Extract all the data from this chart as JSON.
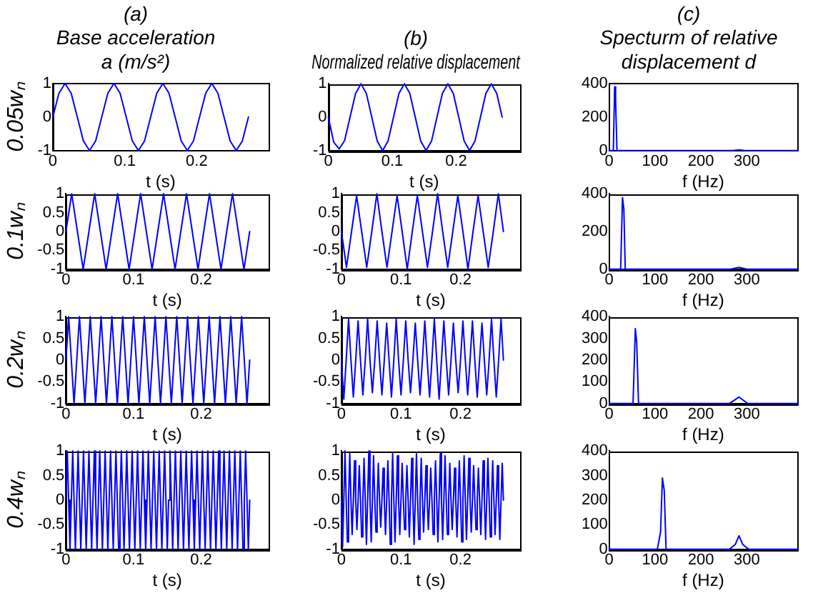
{
  "chart_data": [
    {
      "type": "line",
      "title": "(a)\nBase acceleration\na (m/s²)",
      "xlabel": "t (s)",
      "ylabel": "0.05wₙ",
      "xlim": [
        0,
        0.3
      ],
      "ylim": [
        -1,
        1
      ],
      "xticks": [
        0,
        0.1,
        0.2
      ],
      "yticks": [
        -1,
        0,
        1
      ],
      "x": [
        0,
        0.0085,
        0.017,
        0.0255,
        0.034,
        0.0425,
        0.051,
        0.0595,
        0.068,
        0.0765,
        0.085,
        0.0935,
        0.102,
        0.1105,
        0.119,
        0.1275,
        0.136,
        0.1445,
        0.153,
        0.1615,
        0.17,
        0.1785,
        0.187,
        0.1955,
        0.204,
        0.2125,
        0.221,
        0.2295,
        0.238,
        0.2465,
        0.255,
        0.2635,
        0.272
      ],
      "series": [
        {
          "color": "#0000ff",
          "values": [
            0,
            0.71,
            1,
            0.71,
            0,
            -0.71,
            -1,
            -0.71,
            0,
            0.71,
            1,
            0.71,
            0,
            -0.71,
            -1,
            -0.71,
            0,
            0.71,
            1,
            0.71,
            0,
            -0.71,
            -1,
            -0.71,
            0,
            0.71,
            1,
            0.71,
            0,
            -0.71,
            -1,
            -0.71,
            0
          ]
        }
      ]
    },
    {
      "type": "line",
      "title": "(b)\nNormalized relative displacement",
      "xlabel": "t (s)",
      "xlim": [
        0,
        0.3
      ],
      "ylim": [
        -1,
        1
      ],
      "xticks": [
        0,
        0.1,
        0.2
      ],
      "yticks": [
        -1,
        0,
        1
      ],
      "x": [
        0,
        0.0085,
        0.017,
        0.0255,
        0.034,
        0.0425,
        0.051,
        0.0595,
        0.068,
        0.0765,
        0.085,
        0.0935,
        0.102,
        0.1105,
        0.119,
        0.1275,
        0.136,
        0.1445,
        0.153,
        0.1615,
        0.17,
        0.1785,
        0.187,
        0.1955,
        0.204,
        0.2125,
        0.221,
        0.2295,
        0.238,
        0.2465,
        0.255,
        0.2635,
        0.272
      ],
      "series": [
        {
          "color": "#0000ff",
          "values": [
            0,
            -0.75,
            -0.95,
            -0.7,
            0,
            0.7,
            1,
            0.71,
            0,
            -0.71,
            -1,
            -0.71,
            0,
            0.71,
            1,
            0.71,
            0,
            -0.71,
            -1,
            -0.71,
            0,
            0.71,
            1,
            0.71,
            0,
            -0.71,
            -1,
            -0.71,
            0,
            0.71,
            1,
            0.71,
            0
          ]
        }
      ]
    },
    {
      "type": "line",
      "title": "(c)\nSpecturm of relative\ndisplacement d",
      "xlabel": "f (Hz)",
      "xlim": [
        0,
        410
      ],
      "ylim": [
        0,
        400
      ],
      "xticks": [
        0,
        100,
        200,
        300
      ],
      "yticks": [
        0,
        200,
        400
      ],
      "x": [
        0,
        9,
        12,
        14,
        17,
        270,
        283,
        296,
        410
      ],
      "series": [
        {
          "color": "#0000ff",
          "values": [
            0,
            0,
            380,
            300,
            0,
            0,
            5,
            0,
            0
          ]
        }
      ]
    },
    {
      "type": "line",
      "xlabel": "t (s)",
      "ylabel": "0.1wₙ",
      "xlim": [
        0,
        0.3
      ],
      "ylim": [
        -1,
        1
      ],
      "xticks": [
        0,
        0.1,
        0.2
      ],
      "yticks": [
        -1,
        -0.5,
        0,
        0.5,
        1
      ],
      "x": [
        0,
        0.0085,
        0.017,
        0.0255,
        0.034,
        0.0425,
        0.051,
        0.0595,
        0.068,
        0.0765,
        0.085,
        0.0935,
        0.102,
        0.1105,
        0.119,
        0.1275,
        0.136,
        0.1445,
        0.153,
        0.1615,
        0.17,
        0.1785,
        0.187,
        0.1955,
        0.204,
        0.2125,
        0.221,
        0.2295,
        0.238,
        0.2465,
        0.255,
        0.2635,
        0.272
      ],
      "series": [
        {
          "color": "#0000ff",
          "values": [
            0,
            1,
            0,
            -1,
            0,
            1,
            0,
            -1,
            0,
            1,
            0,
            -1,
            0,
            1,
            0,
            -1,
            0,
            1,
            0,
            -1,
            0,
            1,
            0,
            -1,
            0,
            1,
            0,
            -1,
            0,
            1,
            0,
            -1,
            0
          ]
        }
      ]
    },
    {
      "type": "line",
      "xlabel": "t (s)",
      "xlim": [
        0,
        0.3
      ],
      "ylim": [
        -1,
        1
      ],
      "xticks": [
        0,
        0.1,
        0.2
      ],
      "yticks": [
        -1,
        -0.5,
        0,
        0.5,
        1
      ],
      "x": [
        0,
        0.0085,
        0.017,
        0.0255,
        0.034,
        0.0425,
        0.051,
        0.0595,
        0.068,
        0.0765,
        0.085,
        0.0935,
        0.102,
        0.1105,
        0.119,
        0.1275,
        0.136,
        0.1445,
        0.153,
        0.1615,
        0.17,
        0.1785,
        0.187,
        0.1955,
        0.204,
        0.2125,
        0.221,
        0.2295,
        0.238,
        0.2465,
        0.255,
        0.2635,
        0.272
      ],
      "series": [
        {
          "color": "#0000ff",
          "values": [
            0,
            -0.95,
            0,
            0.95,
            0,
            -0.95,
            0,
            1,
            0,
            -0.95,
            0,
            0.95,
            0,
            -1,
            0,
            0.95,
            0,
            -0.95,
            0,
            1,
            0,
            -0.95,
            0,
            0.95,
            0,
            -1,
            0,
            0.95,
            0,
            -0.95,
            0,
            1,
            0
          ]
        }
      ]
    },
    {
      "type": "line",
      "xlabel": "f (Hz)",
      "xlim": [
        0,
        410
      ],
      "ylim": [
        0,
        400
      ],
      "xticks": [
        0,
        100,
        200,
        300
      ],
      "yticks": [
        0,
        200,
        400
      ],
      "x": [
        0,
        25,
        29,
        32,
        35,
        265,
        283,
        300,
        410
      ],
      "series": [
        {
          "color": "#0000ff",
          "values": [
            0,
            0,
            380,
            320,
            0,
            0,
            10,
            0,
            0
          ]
        }
      ]
    },
    {
      "type": "line",
      "xlabel": "t (s)",
      "ylabel": "0.2wₙ",
      "xlim": [
        0,
        0.3
      ],
      "ylim": [
        -1,
        1
      ],
      "xticks": [
        0,
        0.1,
        0.2
      ],
      "yticks": [
        -1,
        -0.5,
        0,
        0.5,
        1
      ],
      "x": [
        0,
        0.004,
        0.008,
        0.012,
        0.016,
        0.02,
        0.024,
        0.028,
        0.032,
        0.036,
        0.04,
        0.044,
        0.048,
        0.052,
        0.056,
        0.06,
        0.064,
        0.068,
        0.072,
        0.076,
        0.08,
        0.084,
        0.088,
        0.092,
        0.096,
        0.1,
        0.104,
        0.108,
        0.112,
        0.116,
        0.12,
        0.124,
        0.128,
        0.132,
        0.136,
        0.14,
        0.144,
        0.148,
        0.152,
        0.156,
        0.16,
        0.164,
        0.168,
        0.172,
        0.176,
        0.18,
        0.184,
        0.188,
        0.192,
        0.196,
        0.2,
        0.204,
        0.208,
        0.212,
        0.216,
        0.22,
        0.224,
        0.228,
        0.232,
        0.236,
        0.24,
        0.244,
        0.248,
        0.252,
        0.256,
        0.26,
        0.264,
        0.268,
        0.272
      ],
      "series": [
        {
          "color": "#0000ff",
          "values": [
            0,
            1,
            0,
            -1,
            0,
            1,
            0,
            -1,
            0,
            1,
            0,
            -1,
            0,
            1,
            0,
            -1,
            0,
            1,
            0,
            -1,
            0,
            1,
            0,
            -1,
            0,
            1,
            0,
            -1,
            0,
            1,
            0,
            -1,
            0,
            1,
            0,
            -1,
            0,
            1,
            0,
            -1,
            0,
            1,
            0,
            -1,
            0,
            1,
            0,
            -1,
            0,
            1,
            0,
            -1,
            0,
            1,
            0,
            -1,
            0,
            1,
            0,
            -1,
            0,
            1,
            0,
            -1,
            0,
            1,
            0,
            -1,
            0
          ]
        }
      ]
    },
    {
      "type": "line",
      "xlabel": "t (s)",
      "xlim": [
        0,
        0.3
      ],
      "ylim": [
        -1,
        1
      ],
      "xticks": [
        0,
        0.1,
        0.2
      ],
      "yticks": [
        -1,
        -0.5,
        0,
        0.5,
        1
      ],
      "x": [
        0,
        0.004,
        0.008,
        0.012,
        0.016,
        0.02,
        0.024,
        0.028,
        0.032,
        0.036,
        0.04,
        0.044,
        0.048,
        0.052,
        0.056,
        0.06,
        0.064,
        0.068,
        0.072,
        0.076,
        0.08,
        0.084,
        0.088,
        0.092,
        0.096,
        0.1,
        0.104,
        0.108,
        0.112,
        0.116,
        0.12,
        0.124,
        0.128,
        0.132,
        0.136,
        0.14,
        0.144,
        0.148,
        0.152,
        0.156,
        0.16,
        0.164,
        0.168,
        0.172,
        0.176,
        0.18,
        0.184,
        0.188,
        0.192,
        0.196,
        0.2,
        0.204,
        0.208,
        0.212,
        0.216,
        0.22,
        0.224,
        0.228,
        0.232,
        0.236,
        0.24,
        0.244,
        0.248,
        0.252,
        0.256,
        0.26,
        0.264,
        0.268,
        0.272
      ],
      "series": [
        {
          "color": "#0000ff",
          "values": [
            0,
            -0.9,
            0,
            0.95,
            0,
            -0.85,
            0,
            0.9,
            0,
            -0.8,
            0,
            0.95,
            0,
            -0.75,
            0,
            0.9,
            0,
            -0.8,
            0,
            0.85,
            0,
            -0.85,
            0,
            0.95,
            0,
            -0.8,
            0,
            0.9,
            0,
            -0.75,
            0,
            0.85,
            0,
            -0.8,
            0,
            0.9,
            0,
            -0.85,
            0,
            0.95,
            0,
            -0.9,
            0,
            0.9,
            0,
            -0.8,
            0,
            0.85,
            0,
            -0.75,
            0,
            0.9,
            0,
            -0.8,
            0,
            0.9,
            0,
            -0.85,
            0,
            0.85,
            0,
            -0.8,
            0,
            0.95,
            0,
            -0.85,
            0,
            0.95,
            0
          ]
        }
      ]
    },
    {
      "type": "line",
      "xlabel": "f (Hz)",
      "xlim": [
        0,
        410
      ],
      "ylim": [
        0,
        400
      ],
      "xticks": [
        0,
        100,
        200,
        300
      ],
      "yticks": [
        0,
        100,
        200,
        300,
        400
      ],
      "x": [
        0,
        52,
        57,
        60,
        64,
        262,
        283,
        302,
        410
      ],
      "series": [
        {
          "color": "#0000ff",
          "values": [
            0,
            0,
            345,
            280,
            0,
            0,
            30,
            0,
            0
          ]
        }
      ]
    },
    {
      "type": "line",
      "xlabel": "t (s)",
      "ylabel": "0.4wₙ",
      "xlim": [
        0,
        0.3
      ],
      "ylim": [
        -1,
        1
      ],
      "xticks": [
        0,
        0.1,
        0.2
      ],
      "yticks": [
        -1,
        -0.5,
        0,
        0.5,
        1
      ],
      "x": [
        0,
        0.002,
        0.004,
        0.006,
        0.008,
        0.01,
        0.012,
        0.014,
        0.016,
        0.018,
        0.02,
        0.022,
        0.024,
        0.026,
        0.028,
        0.03,
        0.032,
        0.034,
        0.036,
        0.038,
        0.04,
        0.042,
        0.044,
        0.046,
        0.048,
        0.05,
        0.052,
        0.054,
        0.056,
        0.058,
        0.06,
        0.062,
        0.064,
        0.066,
        0.068,
        0.07,
        0.072,
        0.074,
        0.076,
        0.078,
        0.08,
        0.082,
        0.084,
        0.086,
        0.088,
        0.09,
        0.092,
        0.094,
        0.096,
        0.098,
        0.1,
        0.102,
        0.104,
        0.106,
        0.108,
        0.11,
        0.112,
        0.114,
        0.116,
        0.118,
        0.12,
        0.122,
        0.124,
        0.126,
        0.128,
        0.13,
        0.132,
        0.134,
        0.136,
        0.138,
        0.14,
        0.142,
        0.144,
        0.146,
        0.148,
        0.15,
        0.152,
        0.154,
        0.156,
        0.158,
        0.16,
        0.162,
        0.164,
        0.166,
        0.168,
        0.17,
        0.172,
        0.174,
        0.176,
        0.178,
        0.18,
        0.182,
        0.184,
        0.186,
        0.188,
        0.19,
        0.192,
        0.194,
        0.196,
        0.198,
        0.2,
        0.202,
        0.204,
        0.206,
        0.208,
        0.21,
        0.212,
        0.214,
        0.216,
        0.218,
        0.22,
        0.222,
        0.224,
        0.226,
        0.228,
        0.23,
        0.232,
        0.234,
        0.236,
        0.238,
        0.24,
        0.242,
        0.244,
        0.246,
        0.248,
        0.25,
        0.252,
        0.254,
        0.256,
        0.258,
        0.26,
        0.262,
        0.264,
        0.266,
        0.268,
        0.27,
        0.272
      ],
      "series": [
        {
          "color": "#0000ff",
          "values": [
            0,
            1,
            0,
            -1,
            0,
            1,
            0,
            -1,
            0,
            1,
            0,
            -1,
            0,
            1,
            0,
            -1,
            0,
            1,
            0,
            -1,
            0,
            1,
            0,
            -1,
            0,
            1,
            0,
            -1,
            0,
            1,
            0,
            -1,
            0,
            1,
            0,
            -1,
            0,
            1,
            0,
            -1,
            0,
            1,
            0,
            -1,
            0,
            1,
            0,
            -1,
            0,
            1,
            0,
            -1,
            0,
            1,
            0,
            -1,
            0,
            1,
            0,
            -1,
            0,
            1,
            0,
            -1,
            0,
            1,
            0,
            -1,
            0,
            1,
            0,
            -1,
            0,
            1,
            0,
            -1,
            0,
            1,
            0,
            -1,
            0,
            1,
            0,
            -1,
            0,
            1,
            0,
            -1,
            0,
            1,
            0,
            -1,
            0,
            1,
            0,
            -1,
            0,
            1,
            0,
            -1,
            0,
            1,
            0,
            -1,
            0,
            1,
            0,
            -1,
            0,
            1,
            0,
            -1,
            0,
            1,
            0,
            -1,
            0,
            1,
            0,
            -1,
            0,
            1,
            0,
            -1,
            0,
            1,
            0,
            -1,
            0,
            1,
            0,
            -1,
            0,
            1,
            0,
            -1,
            0
          ]
        }
      ]
    },
    {
      "type": "line",
      "xlabel": "t (s)",
      "xlim": [
        0,
        0.3
      ],
      "ylim": [
        -1,
        1
      ],
      "xticks": [
        0,
        0.1,
        0.2
      ],
      "yticks": [
        -1,
        -0.5,
        0,
        0.5,
        1
      ],
      "x": [
        0,
        0.002,
        0.004,
        0.006,
        0.008,
        0.01,
        0.012,
        0.014,
        0.016,
        0.018,
        0.02,
        0.022,
        0.024,
        0.026,
        0.028,
        0.03,
        0.032,
        0.034,
        0.036,
        0.038,
        0.04,
        0.042,
        0.044,
        0.046,
        0.048,
        0.05,
        0.052,
        0.054,
        0.056,
        0.058,
        0.06,
        0.062,
        0.064,
        0.066,
        0.068,
        0.07,
        0.072,
        0.074,
        0.076,
        0.078,
        0.08,
        0.082,
        0.084,
        0.086,
        0.088,
        0.09,
        0.092,
        0.094,
        0.096,
        0.098,
        0.1,
        0.102,
        0.104,
        0.106,
        0.108,
        0.11,
        0.112,
        0.114,
        0.116,
        0.118,
        0.12,
        0.122,
        0.124,
        0.126,
        0.128,
        0.13,
        0.132,
        0.134,
        0.136,
        0.138,
        0.14,
        0.142,
        0.144,
        0.146,
        0.148,
        0.15,
        0.152,
        0.154,
        0.156,
        0.158,
        0.16,
        0.162,
        0.164,
        0.166,
        0.168,
        0.17,
        0.172,
        0.174,
        0.176,
        0.178,
        0.18,
        0.182,
        0.184,
        0.186,
        0.188,
        0.19,
        0.192,
        0.194,
        0.196,
        0.198,
        0.2,
        0.202,
        0.204,
        0.206,
        0.208,
        0.21,
        0.212,
        0.214,
        0.216,
        0.218,
        0.22,
        0.222,
        0.224,
        0.226,
        0.228,
        0.23,
        0.232,
        0.234,
        0.236,
        0.238,
        0.24,
        0.242,
        0.244,
        0.246,
        0.248,
        0.25,
        0.252,
        0.254,
        0.256,
        0.258,
        0.26,
        0.262,
        0.264,
        0.266,
        0.268,
        0.27,
        0.272
      ],
      "series": [
        {
          "color": "#0000ff",
          "values": [
            0,
            -0.95,
            0,
            1,
            0,
            -0.85,
            0,
            0.95,
            0,
            -0.7,
            0,
            0.8,
            0,
            -0.6,
            0,
            0.7,
            0,
            -0.75,
            0,
            0.85,
            0,
            -0.9,
            0,
            1,
            0,
            -0.85,
            0,
            0.9,
            0,
            -0.65,
            0,
            0.75,
            0,
            -0.55,
            0,
            0.65,
            0,
            -0.7,
            0,
            0.8,
            0,
            -0.9,
            0,
            0.95,
            0,
            -0.85,
            0,
            0.9,
            0,
            -0.7,
            0,
            0.75,
            0,
            -0.6,
            0,
            0.7,
            0,
            -0.75,
            0,
            0.85,
            0,
            -0.9,
            0,
            0.95,
            0,
            -0.8,
            0,
            0.85,
            0,
            -0.65,
            0,
            0.7,
            0,
            -0.6,
            0,
            0.65,
            0,
            -0.7,
            0,
            0.8,
            0,
            -0.85,
            0,
            0.95,
            0,
            -0.8,
            0,
            0.9,
            0,
            -0.7,
            0,
            0.75,
            0,
            -0.6,
            0,
            0.65,
            0,
            -0.75,
            0,
            0.8,
            0,
            -0.85,
            0,
            0.9,
            0,
            -0.8,
            0,
            0.85,
            0,
            -0.65,
            0,
            0.7,
            0,
            -0.6,
            0,
            0.65,
            0,
            -0.7,
            0,
            0.8,
            0,
            -0.8,
            0,
            0.85,
            0,
            -0.75,
            0,
            0.8,
            0,
            -0.7,
            0,
            0.7,
            0,
            -0.8,
            0,
            0.75,
            0
          ]
        }
      ]
    },
    {
      "type": "line",
      "xlabel": "f (Hz)",
      "xlim": [
        0,
        410
      ],
      "ylim": [
        0,
        400
      ],
      "xticks": [
        0,
        100,
        200,
        300
      ],
      "yticks": [
        0,
        100,
        200,
        300,
        400
      ],
      "x": [
        0,
        105,
        112,
        116,
        120,
        124,
        262,
        275,
        283,
        291,
        304,
        410
      ],
      "series": [
        {
          "color": "#0000ff",
          "values": [
            0,
            0,
            70,
            290,
            240,
            0,
            0,
            20,
            55,
            20,
            0,
            0
          ]
        }
      ]
    }
  ]
}
